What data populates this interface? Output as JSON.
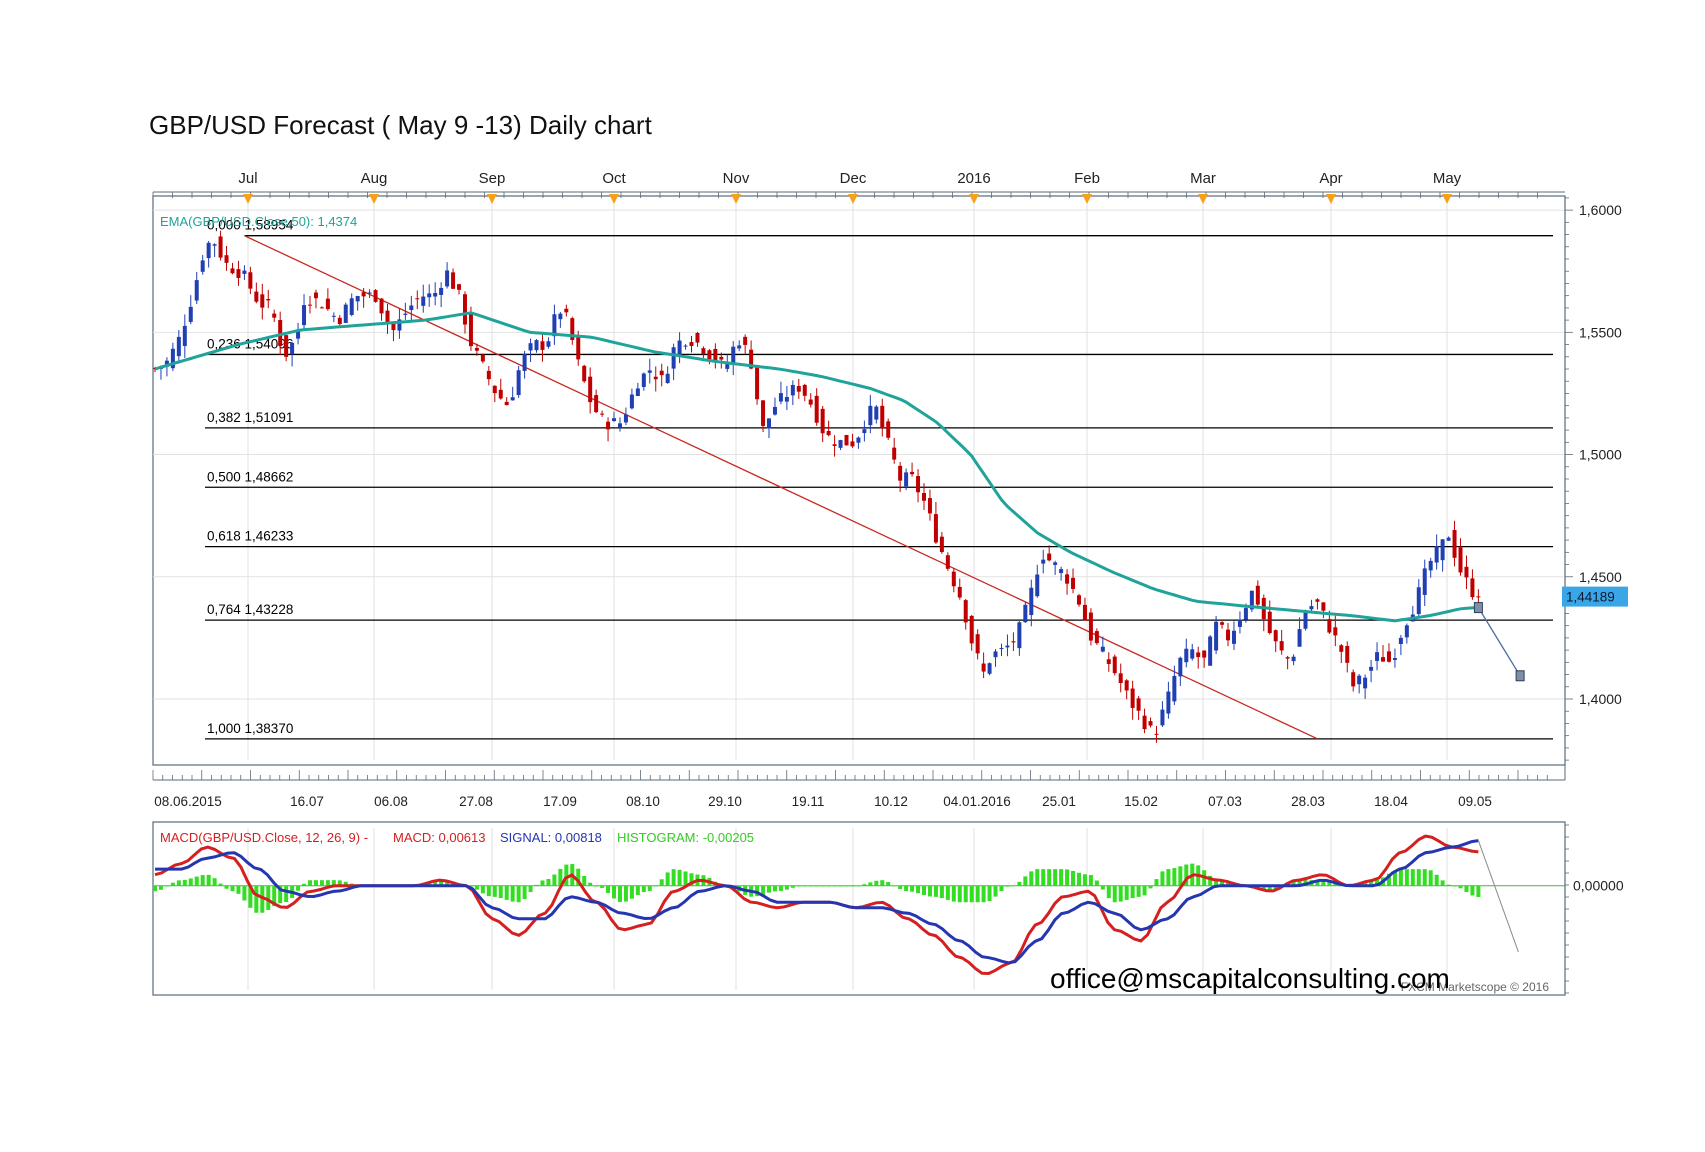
{
  "page": {
    "title": "GBP/USD Forecast ( May 9 -13) Daily chart",
    "email": "office@mscapitalconsulting.com",
    "copyright": "FXCM Marketscope © 2016"
  },
  "colors": {
    "up": "#1f3fb3",
    "down": "#c00000",
    "ema": "#1fa39a",
    "trendline": "#c8281e",
    "macd": "#d42020",
    "signal": "#2536b0",
    "histogram": "#33dd22",
    "price_label_bg": "#3aa6e8",
    "month_marker": "#f5a21a",
    "fib_text": "#000000"
  },
  "chart_data": [
    {
      "type": "candlestick",
      "title": "GBP/USD Forecast ( May 9 -13) Daily chart",
      "indicator_label": "EMA(GBP/USD.Close,50): 1,4374",
      "month_labels": [
        "Jul",
        "Aug",
        "Sep",
        "Oct",
        "Nov",
        "Dec",
        "2016",
        "Feb",
        "Mar",
        "Apr",
        "May"
      ],
      "date_labels": [
        "08.06.2015",
        "16.07",
        "06.08",
        "27.08",
        "17.09",
        "08.10",
        "29.10",
        "19.11",
        "10.12",
        "04.01.2016",
        "25.01",
        "15.02",
        "07.03",
        "28.03",
        "18.04",
        "09.05"
      ],
      "y_ticks": [
        "1,6000",
        "1,5500",
        "1,5000",
        "1,4500",
        "1,4000"
      ],
      "y_tick_values": [
        1.6,
        1.55,
        1.5,
        1.45,
        1.4
      ],
      "ylim": [
        1.373,
        1.607
      ],
      "last_price_label": "1,44189",
      "last_price": 1.44189,
      "fib_levels": [
        {
          "label": "0,000 1,58954",
          "value": 1.58954
        },
        {
          "label": "0,236 1,54096",
          "value": 1.54096
        },
        {
          "label": "0,382 1,51091",
          "value": 1.51091
        },
        {
          "label": "0,500 1,48662",
          "value": 1.48662
        },
        {
          "label": "0,618 1,46233",
          "value": 1.46233
        },
        {
          "label": "0,764 1,43228",
          "value": 1.43228
        },
        {
          "label": "1,000 1,38370",
          "value": 1.3837
        }
      ],
      "trendline": {
        "from": {
          "bar": 15,
          "value": 1.58954
        },
        "to": {
          "bar": 195,
          "value": 1.3837
        }
      },
      "forecast": {
        "from": {
          "bar": 222,
          "value": 1.4374
        },
        "to": {
          "bar": 229,
          "value": 1.4095
        }
      },
      "price_anchors": [
        [
          0,
          1.535
        ],
        [
          3,
          1.538
        ],
        [
          6,
          1.548
        ],
        [
          9,
          1.565
        ],
        [
          12,
          1.585
        ],
        [
          14,
          1.588
        ],
        [
          17,
          1.578
        ],
        [
          21,
          1.574
        ],
        [
          25,
          1.562
        ],
        [
          28,
          1.56
        ],
        [
          31,
          1.54
        ],
        [
          34,
          1.548
        ],
        [
          36,
          1.565
        ],
        [
          40,
          1.562
        ],
        [
          44,
          1.555
        ],
        [
          48,
          1.565
        ],
        [
          53,
          1.565
        ],
        [
          57,
          1.55
        ],
        [
          61,
          1.56
        ],
        [
          64,
          1.565
        ],
        [
          67,
          1.565
        ],
        [
          70,
          1.575
        ],
        [
          73,
          1.565
        ],
        [
          76,
          1.545
        ],
        [
          79,
          1.535
        ],
        [
          82,
          1.525
        ],
        [
          85,
          1.52
        ],
        [
          88,
          1.538
        ],
        [
          91,
          1.545
        ],
        [
          94,
          1.545
        ],
        [
          97,
          1.56
        ],
        [
          99,
          1.555
        ],
        [
          102,
          1.535
        ],
        [
          105,
          1.52
        ],
        [
          108,
          1.513
        ],
        [
          112,
          1.513
        ],
        [
          116,
          1.53
        ],
        [
          119,
          1.535
        ],
        [
          122,
          1.53
        ],
        [
          125,
          1.545
        ],
        [
          128,
          1.548
        ],
        [
          131,
          1.545
        ],
        [
          134,
          1.54
        ],
        [
          137,
          1.535
        ],
        [
          140,
          1.548
        ],
        [
          143,
          1.54
        ],
        [
          146,
          1.51
        ],
        [
          149,
          1.52
        ],
        [
          152,
          1.525
        ],
        [
          155,
          1.528
        ],
        [
          158,
          1.52
        ],
        [
          161,
          1.508
        ],
        [
          164,
          1.505
        ],
        [
          168,
          1.505
        ],
        [
          171,
          1.515
        ],
        [
          173,
          1.52
        ],
        [
          176,
          1.505
        ],
        [
          179,
          1.49
        ],
        [
          182,
          1.49
        ],
        [
          185,
          1.48
        ],
        [
          188,
          1.465
        ],
        [
          191,
          1.452
        ],
        [
          194,
          1.44
        ],
        [
          196,
          1.425
        ],
        [
          199,
          1.41
        ],
        [
          201,
          1.418
        ],
        [
          204,
          1.42
        ],
        [
          207,
          1.425
        ],
        [
          210,
          1.44
        ],
        [
          213,
          1.46
        ],
        [
          216,
          1.455
        ],
        [
          219,
          1.45
        ],
        [
          222,
          1.44
        ],
        [
          224,
          1.43
        ]
      ],
      "price_anchors_tail": [
        [
          225,
          1.425
        ],
        [
          228,
          1.418
        ],
        [
          231,
          1.41
        ],
        [
          234,
          1.4
        ],
        [
          236,
          1.395
        ],
        [
          238,
          1.39
        ],
        [
          240,
          1.385
        ],
        [
          243,
          1.398
        ],
        [
          246,
          1.415
        ],
        [
          249,
          1.42
        ],
        [
          252,
          1.415
        ],
        [
          255,
          1.43
        ],
        [
          258,
          1.425
        ],
        [
          261,
          1.435
        ],
        [
          264,
          1.445
        ],
        [
          267,
          1.43
        ],
        [
          270,
          1.42
        ],
        [
          273,
          1.415
        ],
        [
          276,
          1.435
        ],
        [
          279,
          1.44
        ],
        [
          282,
          1.43
        ],
        [
          285,
          1.42
        ],
        [
          288,
          1.405
        ],
        [
          291,
          1.41
        ],
        [
          294,
          1.418
        ],
        [
          297,
          1.415
        ],
        [
          300,
          1.43
        ],
        [
          303,
          1.44
        ],
        [
          306,
          1.455
        ],
        [
          309,
          1.462
        ],
        [
          311,
          1.468
        ],
        [
          313,
          1.455
        ],
        [
          316,
          1.445
        ],
        [
          318,
          1.4419
        ]
      ],
      "ema_anchors": [
        [
          0,
          1.535
        ],
        [
          10,
          1.54
        ],
        [
          20,
          1.545
        ],
        [
          35,
          1.551
        ],
        [
          50,
          1.553
        ],
        [
          65,
          1.555
        ],
        [
          76,
          1.558
        ],
        [
          90,
          1.55
        ],
        [
          105,
          1.548
        ],
        [
          120,
          1.542
        ],
        [
          135,
          1.538
        ],
        [
          150,
          1.535
        ],
        [
          160,
          1.532
        ],
        [
          172,
          1.527
        ],
        [
          180,
          1.522
        ],
        [
          188,
          1.513
        ],
        [
          196,
          1.5
        ],
        [
          204,
          1.48
        ],
        [
          212,
          1.468
        ],
        [
          220,
          1.46
        ],
        [
          230,
          1.452
        ],
        [
          240,
          1.445
        ],
        [
          250,
          1.44
        ],
        [
          262,
          1.438
        ],
        [
          275,
          1.436
        ],
        [
          288,
          1.434
        ],
        [
          298,
          1.432
        ],
        [
          306,
          1.434
        ],
        [
          314,
          1.437
        ],
        [
          318,
          1.4374
        ]
      ]
    },
    {
      "type": "line",
      "title": "MACD(GBP/USD.Close, 12, 26, 9)",
      "labels": {
        "main": "MACD(GBP/USD.Close, 12, 26, 9) -",
        "macd": "MACD: 0,00613",
        "signal": "SIGNAL: 0,00818",
        "histogram": "HISTOGRAM: -0,00205"
      },
      "y_tick": "0,00000",
      "ylim": [
        -0.018,
        0.011
      ],
      "series": [
        {
          "name": "MACD",
          "values": [
            0.002,
            0.004,
            0.007,
            0.005,
            -0.002,
            -0.004,
            -0.001,
            0.0,
            0.0,
            0.0,
            0.0,
            0.001,
            0.0,
            -0.006,
            -0.009,
            -0.005,
            0.002,
            -0.003,
            -0.008,
            -0.007,
            -0.001,
            0.001,
            0.0,
            -0.003,
            -0.004,
            -0.003,
            -0.003,
            -0.004,
            -0.003,
            -0.006,
            -0.009,
            -0.013,
            -0.016,
            -0.014,
            -0.007,
            -0.002,
            -0.001,
            -0.008,
            -0.01,
            -0.003,
            0.002,
            0.001,
            0.0,
            -0.001,
            0.001,
            0.002,
            0.0,
            0.001,
            0.006,
            0.009,
            0.007,
            0.00613
          ]
        },
        {
          "name": "SIGNAL",
          "values": [
            0.003,
            0.003,
            0.005,
            0.006,
            0.003,
            -0.001,
            -0.002,
            -0.001,
            0.0,
            0.0,
            0.0,
            0.0,
            0.0,
            -0.004,
            -0.006,
            -0.006,
            -0.002,
            -0.003,
            -0.005,
            -0.006,
            -0.004,
            -0.001,
            0.0,
            -0.001,
            -0.003,
            -0.003,
            -0.003,
            -0.004,
            -0.004,
            -0.005,
            -0.007,
            -0.01,
            -0.013,
            -0.014,
            -0.01,
            -0.005,
            -0.003,
            -0.005,
            -0.008,
            -0.006,
            -0.002,
            0.0,
            0.0,
            0.0,
            0.0,
            0.001,
            0.0,
            0.0,
            0.003,
            0.006,
            0.007,
            0.00818
          ]
        },
        {
          "name": "HISTOGRAM",
          "values": [
            -0.001,
            0.001,
            0.002,
            -0.001,
            -0.005,
            -0.003,
            0.001,
            0.001,
            0.0,
            0.0,
            0.0,
            0.001,
            0.0,
            -0.002,
            -0.003,
            0.001,
            0.004,
            0.0,
            -0.003,
            -0.001,
            0.003,
            0.002,
            0.0,
            -0.002,
            -0.001,
            0.0,
            0.0,
            0.0,
            0.001,
            -0.001,
            -0.002,
            -0.003,
            -0.003,
            0.0,
            0.003,
            0.003,
            0.002,
            -0.003,
            -0.002,
            0.003,
            0.004,
            0.001,
            0.0,
            -0.001,
            0.001,
            0.001,
            0.0,
            0.001,
            0.003,
            0.003,
            0.0,
            -0.00205
          ]
        }
      ],
      "forecast_end": -0.012
    }
  ]
}
